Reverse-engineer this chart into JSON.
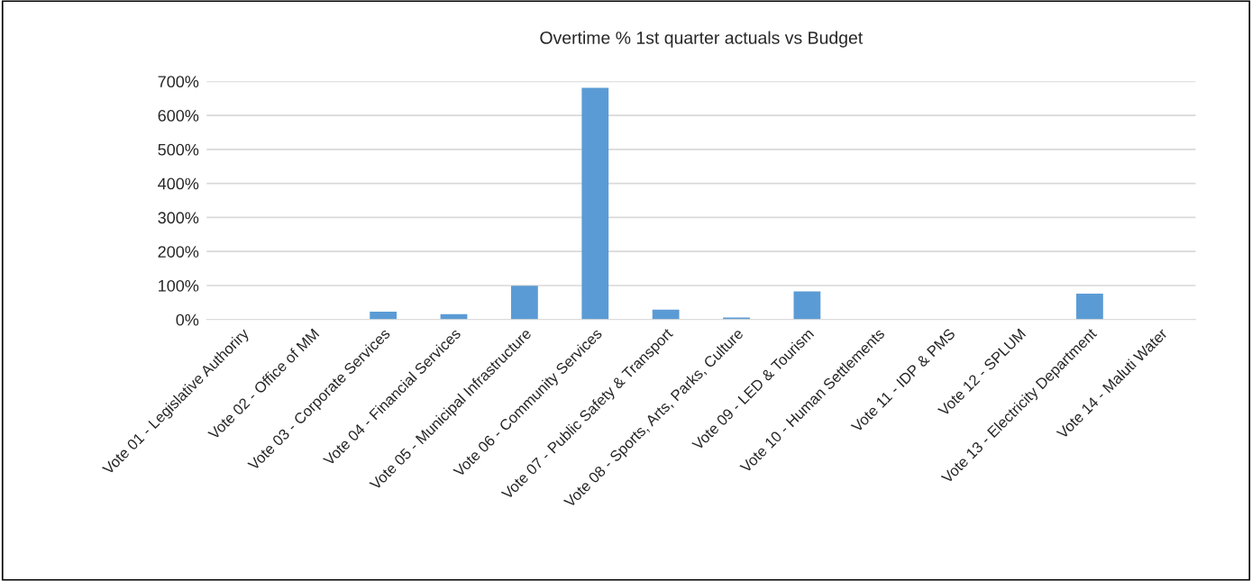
{
  "chart_data": {
    "type": "bar",
    "title": "Overtime % 1st quarter actuals vs Budget",
    "categories": [
      "Vote 01 - Legislative Authoriry",
      "Vote 02 - Office of MM",
      "Vote 03 - Corporate Services",
      "Vote 04 - Financial Services",
      "Vote 05 - Municipal Infrastructure",
      "Vote 06 - Community Services",
      "Vote 07 - Public Safety & Transport",
      "Vote 08 - Sports, Arts, Parks, Culture",
      "Vote 09 - LED & Tourism",
      "Vote 10 - Human Settlements",
      "Vote 11 - IDP & PMS",
      "Vote 12 - SPLUM",
      "Vote 13 - Electricity Department",
      "Vote 14 - Maluti Water"
    ],
    "values": [
      0,
      0,
      23,
      16,
      99,
      681,
      29,
      6,
      83,
      0,
      0,
      0,
      76,
      0
    ],
    "color": "#5b9bd5",
    "ylim": [
      0,
      700
    ],
    "yticks": [
      {
        "value": 0,
        "label": "0%"
      },
      {
        "value": 100,
        "label": "100%"
      },
      {
        "value": 200,
        "label": "200%"
      },
      {
        "value": 300,
        "label": "300%"
      },
      {
        "value": 400,
        "label": "400%"
      },
      {
        "value": 500,
        "label": "500%"
      },
      {
        "value": 600,
        "label": "600%"
      },
      {
        "value": 700,
        "label": "700%"
      }
    ],
    "grid": "y",
    "legend": false
  }
}
